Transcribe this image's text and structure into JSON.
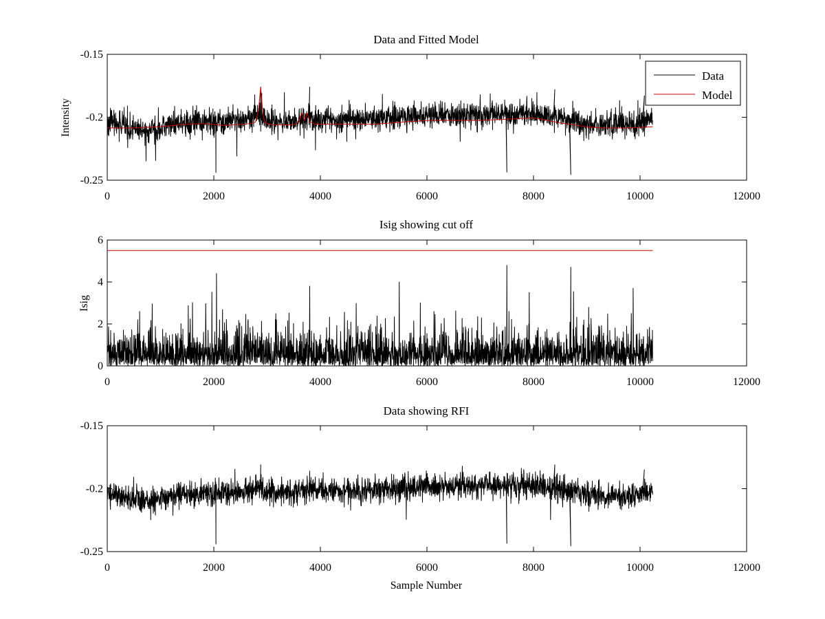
{
  "chart_data": [
    {
      "type": "line",
      "title": "Data and Fitted Model",
      "xlabel": "",
      "ylabel": "Intensity",
      "xlim": [
        0,
        12000
      ],
      "ylim": [
        -0.25,
        -0.15
      ],
      "xticks": [
        0,
        2000,
        4000,
        6000,
        8000,
        10000,
        12000
      ],
      "xtick_labels": [
        "0",
        "2000",
        "4000",
        "6000",
        "8000",
        "10000",
        "12000"
      ],
      "yticks": [
        -0.15,
        -0.2,
        -0.25
      ],
      "ytick_labels": [
        "-0.15",
        "-0.2",
        "-0.25"
      ],
      "legend": {
        "position": "top-right",
        "entries": [
          "Data",
          "Model"
        ]
      },
      "series": [
        {
          "name": "Data",
          "color": "#000000",
          "kind": "noisy",
          "n_samples": 10240,
          "baseline": {
            "x": [
              0,
              300,
              700,
              1200,
              1700,
              2200,
              2700,
              2850,
              3000,
              3500,
              3700,
              3800,
              4200,
              5000,
              6000,
              7000,
              7700,
              8000,
              8500,
              9000,
              9400,
              10000,
              10240
            ],
            "y": [
              -0.2035,
              -0.206,
              -0.211,
              -0.206,
              -0.204,
              -0.204,
              -0.201,
              -0.198,
              -0.2035,
              -0.2035,
              -0.2015,
              -0.201,
              -0.202,
              -0.201,
              -0.198,
              -0.198,
              -0.197,
              -0.197,
              -0.2005,
              -0.205,
              -0.206,
              -0.205,
              -0.201
            ]
          },
          "amplitude": 0.0065,
          "spikes": [
            {
              "x": 2880,
              "y": -0.176
            },
            {
              "x": 2900,
              "y": -0.181
            },
            {
              "x": 3800,
              "y": -0.176
            },
            {
              "x": 7500,
              "y": -0.2435
            },
            {
              "x": 8400,
              "y": -0.178
            },
            {
              "x": 8700,
              "y": -0.2455
            },
            {
              "x": 2040,
              "y": -0.244
            },
            {
              "x": 10080,
              "y": -0.183
            }
          ]
        },
        {
          "name": "Model",
          "color": "#cc0000",
          "kind": "line",
          "x": [
            0,
            500,
            1000,
            1500,
            1800,
            2200,
            2600,
            2780,
            2840,
            2880,
            2920,
            2960,
            3100,
            3500,
            3600,
            3650,
            3700,
            3750,
            3800,
            3900,
            4500,
            5000,
            5500,
            6000,
            6500,
            7000,
            7500,
            8000,
            8500,
            9000,
            9300,
            9800,
            10240
          ],
          "y": [
            -0.2085,
            -0.2085,
            -0.2075,
            -0.2055,
            -0.205,
            -0.2065,
            -0.2055,
            -0.204,
            -0.194,
            -0.176,
            -0.197,
            -0.2045,
            -0.206,
            -0.206,
            -0.2035,
            -0.1965,
            -0.2025,
            -0.1965,
            -0.2035,
            -0.2055,
            -0.2055,
            -0.2055,
            -0.204,
            -0.2025,
            -0.2025,
            -0.2025,
            -0.2015,
            -0.2005,
            -0.2045,
            -0.2075,
            -0.2085,
            -0.2085,
            -0.2075
          ]
        }
      ]
    },
    {
      "type": "line",
      "title": "Isig showing cut off",
      "xlabel": "",
      "ylabel": "Isig",
      "xlim": [
        0,
        12000
      ],
      "ylim": [
        0,
        6
      ],
      "xticks": [
        0,
        2000,
        4000,
        6000,
        8000,
        10000,
        12000
      ],
      "xtick_labels": [
        "0",
        "2000",
        "4000",
        "6000",
        "8000",
        "10000",
        "12000"
      ],
      "yticks": [
        0,
        2,
        4,
        6
      ],
      "ytick_labels": [
        "0",
        "2",
        "4",
        "6"
      ],
      "series": [
        {
          "name": "Isig",
          "color": "#000000",
          "kind": "abs-noise",
          "n_samples": 10240,
          "scale": 0.8,
          "spikes": [
            {
              "x": 2050,
              "y": 4.4
            },
            {
              "x": 7500,
              "y": 4.8
            },
            {
              "x": 8700,
              "y": 4.7
            },
            {
              "x": 5480,
              "y": 4.0
            },
            {
              "x": 3800,
              "y": 3.8
            },
            {
              "x": 9870,
              "y": 3.7
            },
            {
              "x": 7920,
              "y": 3.5
            }
          ]
        },
        {
          "name": "cut off",
          "color": "#cc0000",
          "kind": "line",
          "x": [
            0,
            10240
          ],
          "y": [
            5.5,
            5.5
          ]
        }
      ]
    },
    {
      "type": "line",
      "title": "Data showing RFI",
      "xlabel": "Sample Number",
      "ylabel": "",
      "xlim": [
        0,
        12000
      ],
      "ylim": [
        -0.25,
        -0.15
      ],
      "xticks": [
        0,
        2000,
        4000,
        6000,
        8000,
        10000,
        12000
      ],
      "xtick_labels": [
        "0",
        "2000",
        "4000",
        "6000",
        "8000",
        "10000",
        "12000"
      ],
      "yticks": [
        -0.15,
        -0.2,
        -0.25
      ],
      "ytick_labels": [
        "-0.15",
        "-0.2",
        "-0.25"
      ],
      "series": [
        {
          "name": "Data",
          "color": "#000000",
          "kind": "noisy",
          "n_samples": 10240,
          "baseline": {
            "x": [
              0,
              300,
              700,
              1200,
              1700,
              2200,
              2700,
              2850,
              3000,
              3500,
              3700,
              3800,
              4200,
              5000,
              6000,
              7000,
              7700,
              8000,
              8500,
              9000,
              9400,
              10000,
              10240
            ],
            "y": [
              -0.2035,
              -0.206,
              -0.211,
              -0.206,
              -0.204,
              -0.204,
              -0.201,
              -0.198,
              -0.2035,
              -0.2035,
              -0.2015,
              -0.201,
              -0.202,
              -0.201,
              -0.198,
              -0.198,
              -0.197,
              -0.197,
              -0.2005,
              -0.205,
              -0.206,
              -0.205,
              -0.201
            ]
          },
          "amplitude": 0.0065,
          "spikes": [
            {
              "x": 2880,
              "y": -0.181
            },
            {
              "x": 3800,
              "y": -0.186
            },
            {
              "x": 7500,
              "y": -0.2435
            },
            {
              "x": 8400,
              "y": -0.181
            },
            {
              "x": 8700,
              "y": -0.2455
            },
            {
              "x": 2040,
              "y": -0.244
            },
            {
              "x": 10080,
              "y": -0.185
            }
          ]
        }
      ]
    }
  ]
}
